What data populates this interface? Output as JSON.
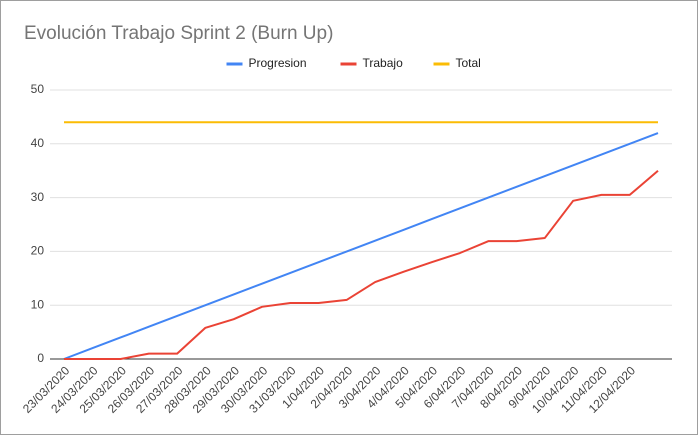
{
  "chart_data": {
    "type": "line",
    "title": "Evolución Trabajo Sprint 2 (Burn Up)",
    "categories": [
      "23/03/2020",
      "24/03/2020",
      "25/03/2020",
      "26/03/2020",
      "27/03/2020",
      "28/03/2020",
      "29/03/2020",
      "30/03/2020",
      "31/03/2020",
      "1/04/2020",
      "2/04/2020",
      "3/04/2020",
      "4/04/2020",
      "5/04/2020",
      "6/04/2020",
      "7/04/2020",
      "8/04/2020",
      "9/04/2020",
      "10/04/2020",
      "11/04/2020",
      "12/04/2020",
      null
    ],
    "series": [
      {
        "name": "Progresion",
        "color": "#4285f4",
        "values": [
          0,
          2,
          4,
          6,
          8,
          10,
          12,
          14,
          16,
          18,
          20,
          22,
          24,
          26,
          28,
          30,
          32,
          34,
          36,
          38,
          40,
          42
        ]
      },
      {
        "name": "Trabajo",
        "color": "#ea4335",
        "values": [
          0,
          0,
          0,
          1,
          1,
          5.8,
          7.4,
          9.7,
          10.4,
          10.4,
          11,
          14.3,
          16.2,
          18,
          19.7,
          21.9,
          21.9,
          22.5,
          29.4,
          30.5,
          30.5,
          35
        ]
      },
      {
        "name": "Total",
        "color": "#fbbc04",
        "values": [
          44,
          44,
          44,
          44,
          44,
          44,
          44,
          44,
          44,
          44,
          44,
          44,
          44,
          44,
          44,
          44,
          44,
          44,
          44,
          44,
          44,
          44
        ]
      }
    ],
    "ylim": [
      0,
      50
    ],
    "yticks": [
      0,
      10,
      20,
      30,
      40,
      50
    ],
    "grid": true,
    "legend": "top"
  }
}
